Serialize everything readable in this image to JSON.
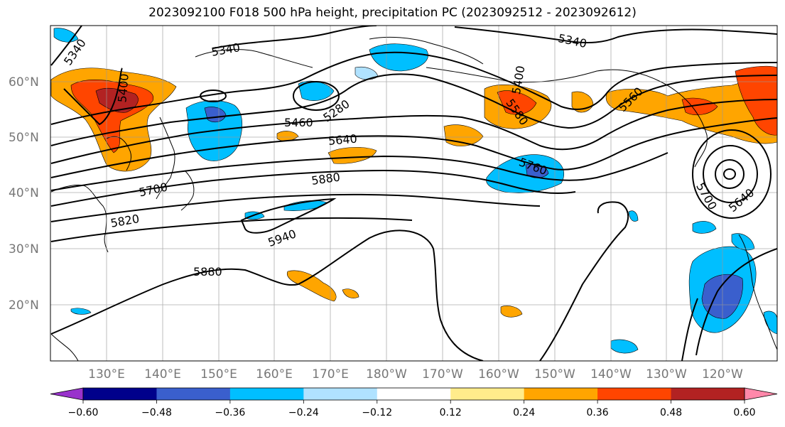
{
  "title": "2023092100 F018 500 hPa height, precipitation PC (2023092512 - 2023092612)",
  "lat_labels": [
    "60°N",
    "50°N",
    "40°N",
    "30°N",
    "20°N"
  ],
  "lon_labels": [
    "130°E",
    "140°E",
    "150°E",
    "160°E",
    "170°E",
    "180°W",
    "170°W",
    "160°W",
    "150°W",
    "140°W",
    "130°W",
    "120°W"
  ],
  "contour_labels": [
    "5340",
    "5340",
    "5340",
    "5400",
    "5400",
    "5280",
    "5460",
    "5640",
    "5580",
    "5560",
    "5700",
    "5880",
    "5760",
    "5820",
    "5940",
    "5880",
    "5700",
    "5640"
  ],
  "colorbar": {
    "ticks": [
      "−0.60",
      "−0.48",
      "−0.36",
      "−0.24",
      "−0.12",
      "0.12",
      "0.24",
      "0.36",
      "0.48",
      "0.60"
    ],
    "colors": [
      "#9932cc",
      "#00008b",
      "#3a5fcd",
      "#00bfff",
      "#b0e2ff",
      "#ffffff",
      "#ffec8b",
      "#ffa500",
      "#ff4500",
      "#b22222",
      "#ff88aa"
    ]
  }
}
